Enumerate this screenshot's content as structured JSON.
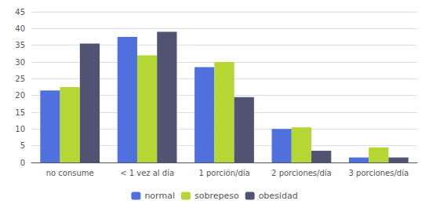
{
  "chart_data": {
    "type": "bar",
    "categories": [
      "no consume",
      "< 1 vez al día",
      "1 porción/día",
      "2 porciones/día",
      "3 porciones/día"
    ],
    "series": [
      {
        "name": "normal",
        "values": [
          21.5,
          37.5,
          28.5,
          10.0,
          1.5
        ]
      },
      {
        "name": "sobrepeso",
        "values": [
          22.5,
          32.0,
          30.0,
          10.5,
          4.5
        ]
      },
      {
        "name": "obesidad",
        "values": [
          35.5,
          39.0,
          19.5,
          3.5,
          1.5
        ]
      }
    ],
    "ylim": [
      0,
      45
    ],
    "yticks": [
      0,
      5,
      10,
      15,
      20,
      25,
      30,
      35,
      40,
      45
    ],
    "grid": true,
    "legend": "bottom"
  }
}
